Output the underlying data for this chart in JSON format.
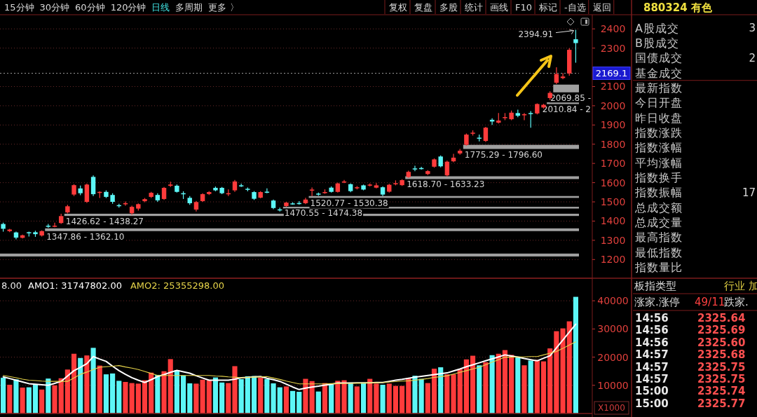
{
  "chart_data": [
    {
      "type": "candlestick",
      "categories": [
        null,
        null,
        null,
        null,
        null,
        null,
        null,
        null,
        null,
        null,
        null,
        null,
        null,
        null,
        null,
        null,
        null,
        null,
        null,
        null,
        null,
        null,
        null,
        null,
        null,
        null,
        null,
        null,
        null,
        null,
        null,
        null,
        null,
        null,
        null,
        null,
        null,
        null,
        null,
        null,
        null,
        null,
        null,
        null,
        null,
        null,
        null,
        null,
        null,
        null,
        null,
        null,
        null,
        null,
        null,
        null,
        null,
        null,
        null,
        null,
        null,
        null,
        null,
        null,
        null,
        null,
        null,
        null,
        null,
        null,
        null,
        null,
        null,
        null,
        null,
        null,
        null,
        null,
        null,
        null,
        null,
        null,
        null,
        null,
        null,
        null,
        null,
        null,
        null,
        null
      ],
      "ylim": [
        1110,
        2470
      ],
      "yticks": [
        1200,
        1300,
        1400,
        1500,
        1600,
        1700,
        1800,
        1900,
        2000,
        2100,
        2300,
        2400
      ],
      "tick_labels": "y",
      "grid": "y",
      "ohlc": [
        [
          1385,
          1392,
          1345,
          1360
        ],
        [
          1348,
          1360,
          1342,
          1356
        ],
        [
          1341,
          1345,
          1305,
          1314
        ],
        [
          1313,
          1330,
          1310,
          1326
        ],
        [
          1342,
          1345,
          1320,
          1340
        ],
        [
          1342,
          1350,
          1318,
          1332
        ],
        [
          1325,
          1352,
          1320,
          1348
        ],
        [
          1376,
          1385,
          1365,
          1372
        ],
        [
          1372,
          1392,
          1368,
          1376
        ],
        [
          1390,
          1438,
          1385,
          1426
        ],
        [
          1445,
          1485,
          1440,
          1477
        ],
        [
          1538,
          1592,
          1530,
          1587
        ],
        [
          1570,
          1585,
          1535,
          1545
        ],
        [
          1500,
          1595,
          1495,
          1590
        ],
        [
          1630,
          1638,
          1530,
          1540
        ],
        [
          1548,
          1555,
          1520,
          1552
        ],
        [
          1552,
          1560,
          1520,
          1526
        ],
        [
          1536,
          1545,
          1490,
          1500
        ],
        [
          1483,
          1490,
          1470,
          1480
        ],
        [
          1490,
          1502,
          1480,
          1493
        ],
        [
          1441,
          1480,
          1433,
          1474
        ],
        [
          1465,
          1492,
          1455,
          1488
        ],
        [
          1504,
          1520,
          1498,
          1514
        ],
        [
          1526,
          1552,
          1520,
          1547
        ],
        [
          1536,
          1545,
          1500,
          1508
        ],
        [
          1515,
          1578,
          1510,
          1573
        ],
        [
          1584,
          1605,
          1578,
          1590
        ],
        [
          1584,
          1590,
          1548,
          1552
        ],
        [
          1545,
          1555,
          1515,
          1542
        ],
        [
          1521,
          1530,
          1485,
          1493
        ],
        [
          1460,
          1505,
          1450,
          1499
        ],
        [
          1504,
          1545,
          1500,
          1540
        ],
        [
          1541,
          1556,
          1536,
          1551
        ],
        [
          1573,
          1580,
          1555,
          1560
        ],
        [
          1573,
          1578,
          1540,
          1545
        ],
        [
          1540,
          1565,
          1530,
          1545
        ],
        [
          1560,
          1614,
          1552,
          1606
        ],
        [
          1586,
          1595,
          1578,
          1583
        ],
        [
          1568,
          1575,
          1555,
          1565
        ],
        [
          1551,
          1556,
          1510,
          1516
        ],
        [
          1522,
          1556,
          1518,
          1551
        ],
        [
          1553,
          1570,
          1545,
          1550
        ],
        [
          1507,
          1512,
          1462,
          1468
        ],
        [
          1461,
          1470,
          1450,
          1458
        ],
        [
          1478,
          1500,
          1474,
          1496
        ],
        [
          1492,
          1498,
          1485,
          1489
        ],
        [
          1494,
          1504,
          1486,
          1492
        ],
        [
          1493,
          1520.77,
          1488,
          1512
        ],
        [
          1560,
          1575,
          1530.38,
          1564
        ],
        [
          1543,
          1548,
          1532,
          1540
        ],
        [
          1547,
          1565,
          1542,
          1551
        ],
        [
          1574,
          1580,
          1548,
          1552
        ],
        [
          1552,
          1600,
          1548,
          1596
        ],
        [
          1603,
          1614,
          1598,
          1606
        ],
        [
          1592,
          1596,
          1550,
          1556
        ],
        [
          1572,
          1582,
          1565,
          1576
        ],
        [
          1586,
          1590,
          1560,
          1564
        ],
        [
          1587,
          1596,
          1580,
          1590
        ],
        [
          1574,
          1598,
          1570,
          1586
        ],
        [
          1576,
          1580,
          1530,
          1538
        ],
        [
          1553,
          1594,
          1548,
          1589
        ],
        [
          1594,
          1612,
          1586,
          1597
        ],
        [
          1587,
          1618,
          1583,
          1613
        ],
        [
          1629,
          1662,
          1625,
          1656
        ],
        [
          1674,
          1688,
          1660,
          1670
        ],
        [
          1676,
          1682,
          1668,
          1673
        ],
        [
          1645,
          1665,
          1640,
          1660
        ],
        [
          1683,
          1726,
          1678,
          1721
        ],
        [
          1736,
          1742,
          1680,
          1685
        ],
        [
          1638,
          1714,
          1632,
          1709
        ],
        [
          1711,
          1750,
          1706,
          1730
        ],
        [
          1752,
          1775,
          1745,
          1766
        ],
        [
          1797,
          1856,
          1792,
          1850
        ],
        [
          1856,
          1872,
          1845,
          1860
        ],
        [
          1834,
          1850,
          1815,
          1829
        ],
        [
          1817,
          1890,
          1812,
          1886
        ],
        [
          1927,
          1935,
          1900,
          1918
        ],
        [
          1912,
          1962,
          1908,
          1923
        ],
        [
          1937,
          1962,
          1925,
          1941
        ],
        [
          1930,
          1975,
          1925,
          1964
        ],
        [
          1962,
          1980,
          1940,
          1948
        ],
        [
          1952,
          1962,
          1925,
          1956
        ],
        [
          1962,
          1972,
          1886,
          1958
        ],
        [
          1960,
          2012,
          1955,
          2009
        ],
        [
          1991,
          2010,
          1985,
          2005
        ],
        [
          2040,
          2075,
          2030,
          2067
        ],
        [
          2120,
          2200,
          2113,
          2165
        ],
        [
          2144,
          2170,
          2138,
          2152
        ],
        [
          2168,
          2300,
          2156,
          2291
        ],
        [
          2346,
          2394.91,
          2224,
          2326
        ]
      ],
      "colors": [
        "#5cf6f6",
        "#ff3b3b",
        "#5cf6f6",
        "#ff3b3b",
        "#5cf6f6",
        "#5cf6f6",
        "#ff3b3b",
        "#5cf6f6",
        "#ff3b3b",
        "#ff3b3b",
        "#ff3b3b",
        "#ff3b3b",
        "#5cf6f6",
        "#ff3b3b",
        "#5cf6f6",
        "#ff3b3b",
        "#5cf6f6",
        "#5cf6f6",
        "#5cf6f6",
        "#ff3b3b",
        "#ff3b3b",
        "#ff3b3b",
        "#ff3b3b",
        "#ff3b3b",
        "#5cf6f6",
        "#ff3b3b",
        "#ff3b3b",
        "#5cf6f6",
        "#5cf6f6",
        "#5cf6f6",
        "#ff3b3b",
        "#ff3b3b",
        "#ff3b3b",
        "#5cf6f6",
        "#5cf6f6",
        "#ff3b3b",
        "#ff3b3b",
        "#5cf6f6",
        "#5cf6f6",
        "#5cf6f6",
        "#ff3b3b",
        "#5cf6f6",
        "#5cf6f6",
        "#5cf6f6",
        "#ff3b3b",
        "#5cf6f6",
        "#5cf6f6",
        "#ff3b3b",
        "#ff3b3b",
        "#5cf6f6",
        "#ff3b3b",
        "#5cf6f6",
        "#ff3b3b",
        "#ff3b3b",
        "#5cf6f6",
        "#ff3b3b",
        "#5cf6f6",
        "#ff3b3b",
        "#ff3b3b",
        "#5cf6f6",
        "#ff3b3b",
        "#ff3b3b",
        "#ff3b3b",
        "#ff3b3b",
        "#5cf6f6",
        "#5cf6f6",
        "#ff3b3b",
        "#ff3b3b",
        "#5cf6f6",
        "#ff3b3b",
        "#ff3b3b",
        "#ff3b3b",
        "#ff3b3b",
        "#ff3b3b",
        "#5cf6f6",
        "#ff3b3b",
        "#5cf6f6",
        "#ff3b3b",
        "#ff3b3b",
        "#ff3b3b",
        "#5cf6f6",
        "#ff3b3b",
        "#5cf6f6",
        "#ff3b3b",
        "#ff3b3b",
        "#ff3b3b",
        "#ff3b3b",
        "#ff3b3b",
        "#ff3b3b",
        "#5cf6f6"
      ],
      "bands": [
        {
          "axis": "y",
          "from": 1216,
          "to": 1231,
          "color": "#a0a0a0"
        },
        {
          "axis": "y",
          "from": 1347.86,
          "to": 1362.1,
          "color": "#a0a0a0",
          "label": "1347.86 - 1362.10"
        },
        {
          "axis": "y",
          "from": 1426.62,
          "to": 1438.27,
          "color": "#a0a0a0",
          "label": "1426.62 - 1438.27"
        },
        {
          "axis": "y",
          "from": 1470.55,
          "to": 1474.38,
          "color": "#a0a0a0",
          "label": "1470.55 - 1474.38"
        },
        {
          "axis": "y",
          "from": 1520.77,
          "to": 1530.38,
          "color": "#a0a0a0",
          "label": "1520.77 - 1530.38"
        },
        {
          "axis": "y",
          "from": 1618.7,
          "to": 1633.23,
          "color": "#a0a0a0",
          "label": "1618.70 - 1633.23"
        },
        {
          "axis": "y",
          "from": 1775.29,
          "to": 1796.6,
          "color": "#a0a0a0",
          "label": "1775.29 - 1796.60"
        },
        {
          "axis": "y",
          "from": 2010.84,
          "to": 2018,
          "color": "#a0a0a0",
          "label": "2010.84 - 2"
        },
        {
          "axis": "y",
          "from": 2069.85,
          "to": 2110,
          "color": "#a0a0a0",
          "label": "2069.85 -"
        }
      ],
      "ref_lines": [
        {
          "axis": "y",
          "value": 2169.1,
          "label": "2169.1",
          "line_style": "dotted",
          "color": "#9a9a9a"
        }
      ],
      "annotations": [
        "2394.91"
      ]
    },
    {
      "type": "bar",
      "categories": [
        null,
        null,
        null,
        null,
        null,
        null,
        null,
        null,
        null,
        null,
        null,
        null,
        null,
        null,
        null,
        null,
        null,
        null,
        null,
        null,
        null,
        null,
        null,
        null,
        null,
        null,
        null,
        null,
        null,
        null,
        null,
        null,
        null,
        null,
        null,
        null,
        null,
        null,
        null,
        null,
        null,
        null,
        null,
        null,
        null,
        null,
        null,
        null,
        null,
        null,
        null,
        null,
        null,
        null,
        null,
        null,
        null,
        null,
        null,
        null,
        null,
        null,
        null,
        null,
        null,
        null,
        null,
        null,
        null,
        null,
        null,
        null,
        null,
        null,
        null,
        null,
        null,
        null,
        null,
        null,
        null,
        null,
        null,
        null,
        null,
        null,
        null,
        null,
        null,
        null
      ],
      "ylim": [
        0,
        48000
      ],
      "yticks": [
        10000,
        20000,
        30000,
        40000
      ],
      "tick_labels": "y",
      "grid": "y",
      "ylabel": "X1000",
      "annotations": [
        "8.00"
      ],
      "values": [
        12700,
        10200,
        12100,
        9200,
        9300,
        10300,
        8500,
        12400,
        10000,
        12500,
        15600,
        21200,
        19700,
        20600,
        23300,
        17000,
        13900,
        14200,
        11600,
        11200,
        10800,
        10600,
        11800,
        14500,
        13700,
        15000,
        19300,
        15400,
        13500,
        10700,
        10600,
        12000,
        11800,
        12800,
        11000,
        10800,
        16800,
        12200,
        13200,
        13300,
        12700,
        12200,
        10700,
        9300,
        9600,
        8000,
        7700,
        12300,
        11500,
        7800,
        10800,
        10300,
        11600,
        11800,
        11000,
        9600,
        11000,
        12300,
        10600,
        10200,
        10600,
        9800,
        9800,
        12600,
        13400,
        12300,
        10800,
        15900,
        16400,
        13900,
        13900,
        15700,
        19200,
        20500,
        17100,
        18200,
        20700,
        21200,
        22500,
        20800,
        20200,
        17100,
        18800,
        19000,
        18500,
        23100,
        29200,
        30200,
        32700,
        41400
      ],
      "colors": [
        "#5cf6f6",
        "#ff3b3b",
        "#5cf6f6",
        "#ff3b3b",
        "#5cf6f6",
        "#5cf6f6",
        "#ff3b3b",
        "#5cf6f6",
        "#ff3b3b",
        "#ff3b3b",
        "#ff3b3b",
        "#ff3b3b",
        "#5cf6f6",
        "#ff3b3b",
        "#5cf6f6",
        "#ff3b3b",
        "#5cf6f6",
        "#5cf6f6",
        "#5cf6f6",
        "#ff3b3b",
        "#ff3b3b",
        "#ff3b3b",
        "#ff3b3b",
        "#ff3b3b",
        "#5cf6f6",
        "#ff3b3b",
        "#ff3b3b",
        "#5cf6f6",
        "#5cf6f6",
        "#5cf6f6",
        "#ff3b3b",
        "#ff3b3b",
        "#ff3b3b",
        "#5cf6f6",
        "#5cf6f6",
        "#ff3b3b",
        "#ff3b3b",
        "#5cf6f6",
        "#5cf6f6",
        "#5cf6f6",
        "#ff3b3b",
        "#5cf6f6",
        "#5cf6f6",
        "#5cf6f6",
        "#ff3b3b",
        "#5cf6f6",
        "#5cf6f6",
        "#ff3b3b",
        "#ff3b3b",
        "#5cf6f6",
        "#ff3b3b",
        "#5cf6f6",
        "#ff3b3b",
        "#ff3b3b",
        "#5cf6f6",
        "#ff3b3b",
        "#5cf6f6",
        "#ff3b3b",
        "#ff3b3b",
        "#5cf6f6",
        "#ff3b3b",
        "#ff3b3b",
        "#ff3b3b",
        "#ff3b3b",
        "#5cf6f6",
        "#5cf6f6",
        "#ff3b3b",
        "#ff3b3b",
        "#5cf6f6",
        "#ff3b3b",
        "#ff3b3b",
        "#ff3b3b",
        "#ff3b3b",
        "#ff3b3b",
        "#5cf6f6",
        "#ff3b3b",
        "#5cf6f6",
        "#ff3b3b",
        "#ff3b3b",
        "#ff3b3b",
        "#5cf6f6",
        "#ff3b3b",
        "#5cf6f6",
        "#ff3b3b",
        "#ff3b3b",
        "#ff3b3b",
        "#ff3b3b",
        "#ff3b3b",
        "#ff3b3b",
        "#5cf6f6"
      ]
    },
    {
      "type": "line",
      "categories": [
        null,
        null,
        null,
        null,
        null,
        null,
        null,
        null,
        null,
        null,
        null,
        null,
        null,
        null,
        null,
        null,
        null,
        null,
        null,
        null,
        null,
        null,
        null,
        null,
        null,
        null,
        null,
        null,
        null,
        null,
        null,
        null,
        null,
        null,
        null,
        null,
        null,
        null,
        null,
        null,
        null,
        null,
        null,
        null,
        null,
        null,
        null,
        null,
        null,
        null,
        null,
        null,
        null,
        null,
        null,
        null,
        null,
        null,
        null,
        null,
        null,
        null,
        null,
        null,
        null,
        null,
        null,
        null,
        null,
        null,
        null,
        null,
        null,
        null,
        null,
        null,
        null,
        null,
        null,
        null,
        null,
        null,
        null,
        null,
        null,
        null,
        null,
        null,
        null,
        null
      ],
      "ylim": [
        0,
        48000
      ],
      "tick_labels": false,
      "series": [
        {
          "name": "AMO1: 31747802.00",
          "color": "#ffffff",
          "values": [
            13000,
            12400,
            11800,
            11200,
            10600,
            10400,
            10200,
            10000,
            10700,
            11400,
            13300,
            15200,
            16400,
            17700,
            20200,
            19300,
            18500,
            16800,
            15200,
            13900,
            12700,
            11800,
            11000,
            12000,
            13100,
            13800,
            14600,
            15300,
            14800,
            14300,
            13400,
            12600,
            11800,
            11800,
            11800,
            11800,
            12200,
            12700,
            12800,
            13000,
            13100,
            12500,
            12000,
            11400,
            10400,
            9400,
            8500,
            9000,
            9400,
            9700,
            10100,
            10400,
            10800,
            10800,
            10800,
            10900,
            10900,
            10900,
            11000,
            11000,
            11400,
            11800,
            12100,
            12500,
            12900,
            13200,
            13500,
            13800,
            14100,
            14400,
            15100,
            15800,
            16600,
            17300,
            18000,
            18700,
            19400,
            20100,
            20800,
            20400,
            20000,
            19500,
            19100,
            18700,
            19600,
            20500,
            23300,
            26100,
            28900,
            31700
          ]
        },
        {
          "name": "AMO2: 25355298.00",
          "color": "#e6d44a",
          "values": [
            13500,
            13100,
            12700,
            12200,
            11800,
            11700,
            11500,
            11400,
            11400,
            11400,
            11400,
            12600,
            13900,
            14700,
            15600,
            16400,
            16600,
            16800,
            17000,
            16500,
            16100,
            15600,
            14900,
            14200,
            13500,
            13500,
            13500,
            13500,
            13500,
            13500,
            13500,
            13500,
            13500,
            13300,
            13200,
            13000,
            12900,
            12700,
            12800,
            12900,
            13000,
            13100,
            12600,
            12100,
            11500,
            11000,
            10500,
            10500,
            10500,
            10500,
            10500,
            10600,
            10600,
            10700,
            10700,
            10800,
            10800,
            10900,
            10900,
            11000,
            11200,
            11300,
            11500,
            11600,
            11800,
            12100,
            12400,
            12800,
            13100,
            13400,
            14000,
            14600,
            15200,
            15800,
            16400,
            17300,
            18200,
            19100,
            20000,
            20000,
            20100,
            20100,
            20200,
            20200,
            20800,
            21400,
            22000,
            23100,
            24300,
            25400
          ]
        }
      ]
    },
    {
      "type": "other",
      "title": "880324 有色",
      "categories": [
        "A股成交",
        "B股成交",
        "国债成交",
        "基金成交",
        "最新指数",
        "今日开盘",
        "昨日收盘",
        "指数涨跌",
        "指数涨幅",
        "平均涨幅",
        "指数换手",
        "指数振幅",
        "总成交额",
        "总成交量",
        "最高指数",
        "最低指数",
        "指数量比"
      ],
      "value_labels": [
        "3",
        null,
        "2",
        null,
        null,
        null,
        null,
        null,
        null,
        null,
        null,
        "17",
        null,
        null,
        null,
        null,
        null
      ]
    },
    {
      "type": "other",
      "annotations": [
        "板指类型",
        "行业 加",
        "涨家.涨停",
        "49/11",
        "跌家."
      ],
      "categories": [
        "14:56",
        "14:56",
        "14:56",
        "14:57",
        "14:57",
        "14:57",
        "15:00",
        "15:00"
      ],
      "value_labels": [
        "2325.64",
        "2325.69",
        "2325.60",
        "2325.68",
        "2325.75",
        "2325.75",
        "2325.74",
        "2325.77"
      ]
    },
    {
      "type": "other",
      "categories": [
        "15分钟",
        "30分钟",
        "60分钟",
        "120分钟",
        "日线",
        "多周期",
        "更多 〉",
        "复权",
        "复盘",
        "多股",
        "统计",
        "画线",
        "F10",
        "标记",
        "-自选",
        "返回"
      ],
      "colors": [
        "#d8d8d8",
        "#d8d8d8",
        "#d8d8d8",
        "#d8d8d8",
        "#40e0e0",
        "#d8d8d8",
        "#d8d8d8",
        "#d8d8d8",
        "#d8d8d8",
        "#d8d8d8",
        "#d8d8d8",
        "#d8d8d8",
        "#d8d8d8",
        "#d8d8d8",
        "#d8d8d8",
        "#d8d8d8"
      ]
    }
  ]
}
